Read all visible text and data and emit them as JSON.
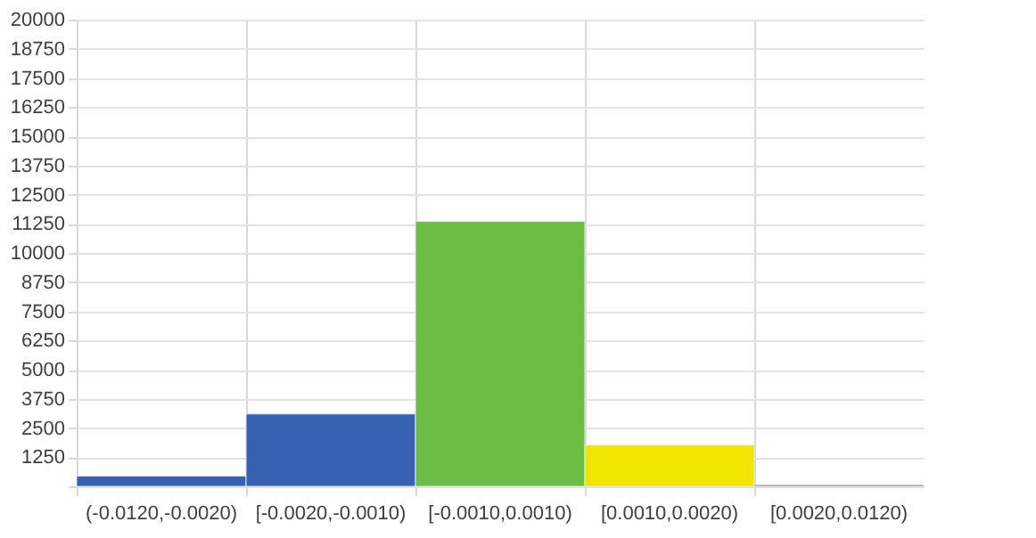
{
  "chart_data": {
    "type": "bar",
    "categories": [
      "(-0.0120,-0.0020)",
      "[-0.0020,-0.0010)",
      "[-0.0010,0.0010)",
      "[0.0010,0.0020)",
      "[0.0020,0.0120)"
    ],
    "values": [
      440,
      3100,
      11350,
      1760,
      70
    ],
    "colors": [
      "#3561b0",
      "#3561b0",
      "#6dbd45",
      "#f2e600",
      "#8a6f8a"
    ],
    "ylim": [
      0,
      20000
    ],
    "yticks": [
      {
        "value": 0,
        "label": null
      },
      1250,
      2500,
      3750,
      5000,
      6250,
      7500,
      8750,
      10000,
      11250,
      12500,
      13750,
      15000,
      16250,
      17500,
      18750,
      20000
    ],
    "grid": true
  }
}
